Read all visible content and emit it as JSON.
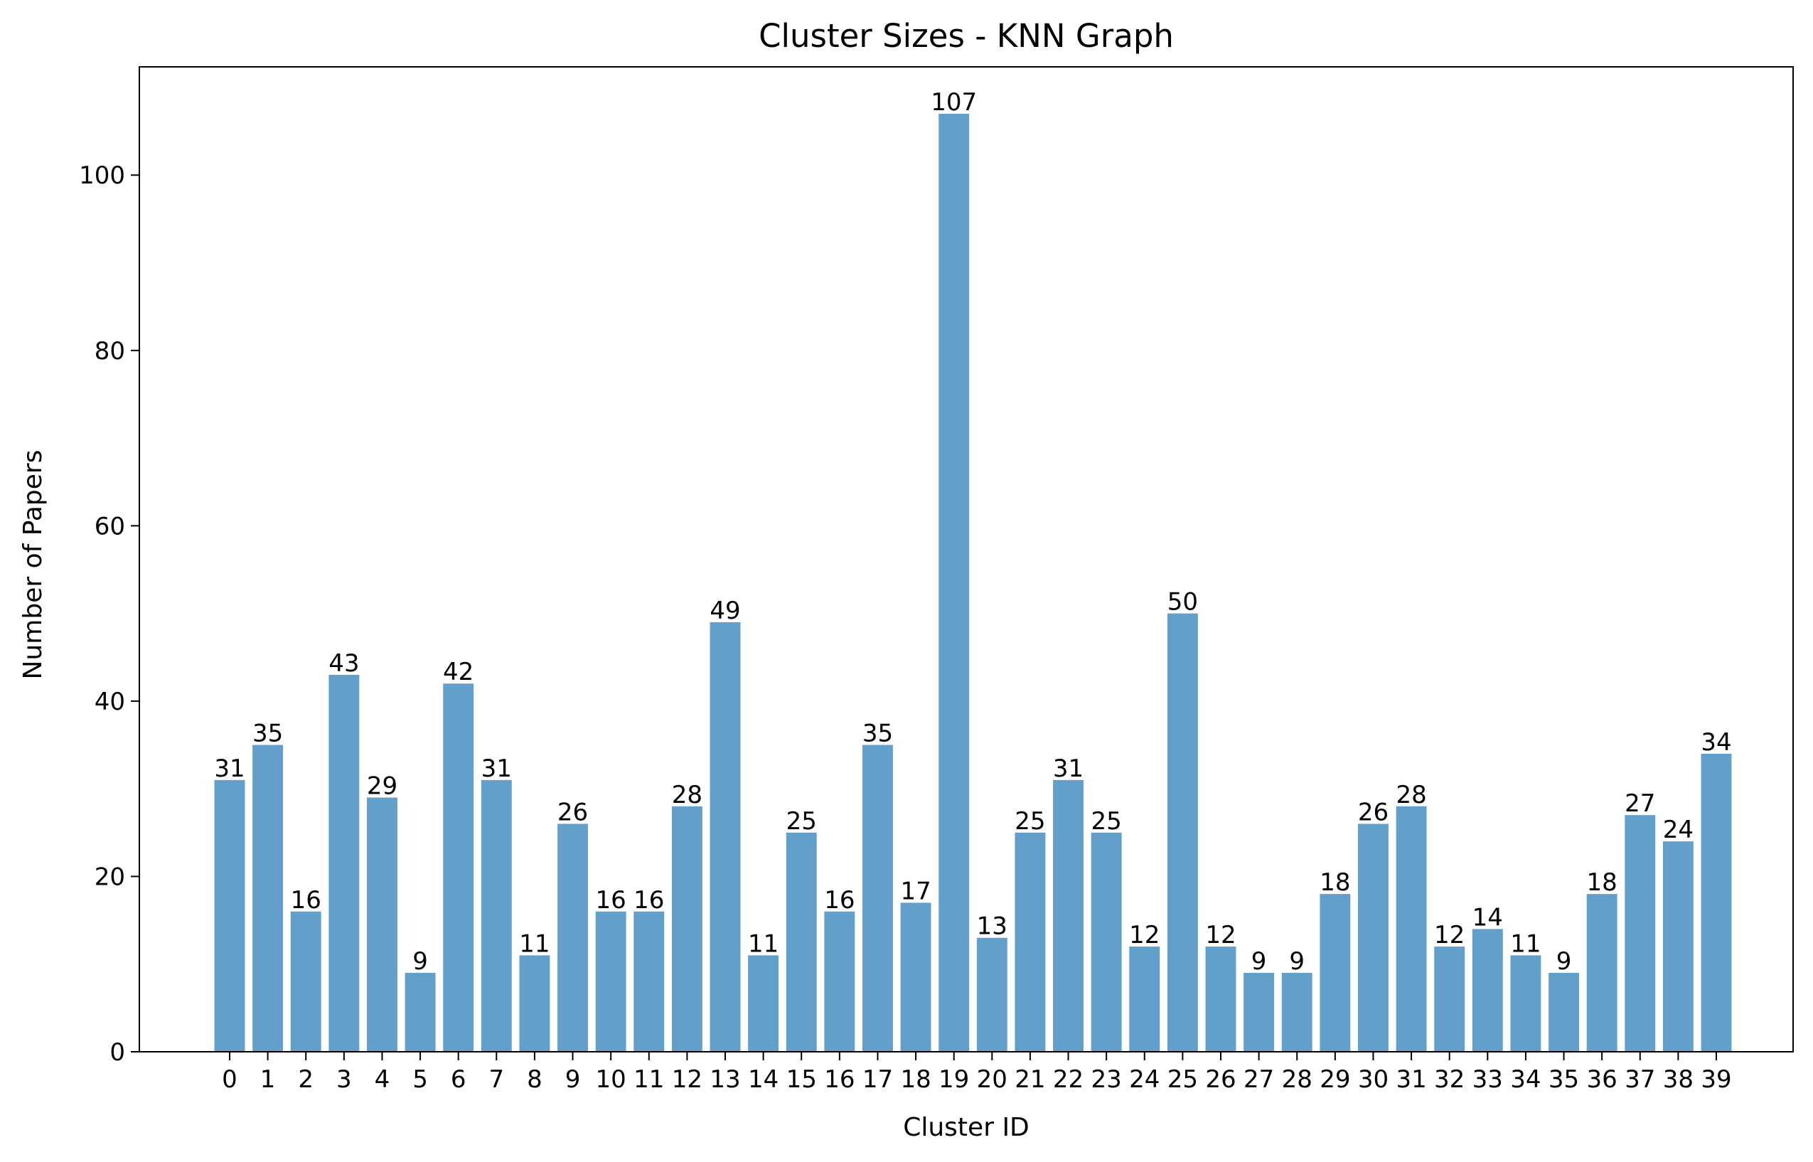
{
  "chart_data": {
    "type": "bar",
    "title": "Cluster Sizes - KNN Graph",
    "xlabel": "Cluster ID",
    "ylabel": "Number of Papers",
    "categories": [
      "0",
      "1",
      "2",
      "3",
      "4",
      "5",
      "6",
      "7",
      "8",
      "9",
      "10",
      "11",
      "12",
      "13",
      "14",
      "15",
      "16",
      "17",
      "18",
      "19",
      "20",
      "21",
      "22",
      "23",
      "24",
      "25",
      "26",
      "27",
      "28",
      "29",
      "30",
      "31",
      "32",
      "33",
      "34",
      "35",
      "36",
      "37",
      "38",
      "39"
    ],
    "values": [
      31,
      35,
      16,
      43,
      29,
      9,
      42,
      31,
      11,
      26,
      16,
      16,
      28,
      49,
      11,
      25,
      16,
      35,
      17,
      107,
      13,
      25,
      31,
      25,
      12,
      50,
      12,
      9,
      9,
      18,
      26,
      28,
      12,
      14,
      11,
      9,
      18,
      27,
      24,
      34
    ],
    "ylim": [
      0,
      112.35
    ],
    "yticks": [
      0,
      20,
      40,
      60,
      80,
      100
    ],
    "bar_color": "#62a0cb",
    "grid": false,
    "legend": "none"
  }
}
